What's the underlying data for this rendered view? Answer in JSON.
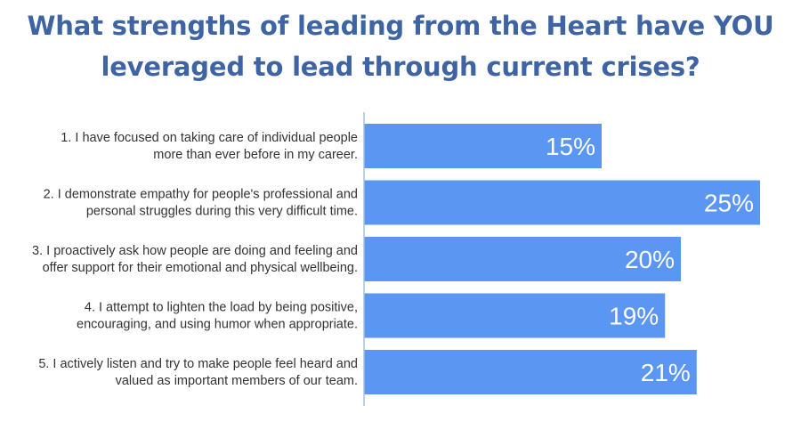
{
  "chart_data": {
    "type": "bar",
    "orientation": "horizontal",
    "title_lines": [
      "What strengths of leading from the Heart have YOU",
      "leveraged to lead through current crises?"
    ],
    "categories": [
      [
        "1. I have focused on taking care of individual people",
        "more than ever before in my career."
      ],
      [
        "2. I demonstrate empathy for people's professional and",
        "personal struggles during this very difficult time."
      ],
      [
        "3. I proactively ask how people are doing and feeling and",
        "offer support for their emotional and physical wellbeing."
      ],
      [
        "4. I attempt to lighten the load by being positive,",
        "encouraging, and using humor when appropriate."
      ],
      [
        "5. I actively listen and try to make people feel heard and",
        "valued as important members of our team."
      ]
    ],
    "values": [
      15,
      25,
      20,
      19,
      21
    ],
    "value_labels": [
      "15%",
      "25%",
      "20%",
      "19%",
      "21%"
    ],
    "xlim": [
      0,
      25
    ],
    "grid": false,
    "legend": "none",
    "bar_color": "#5b97f2",
    "axis_color": "#a8bfe0",
    "title_color": "#3f64a3"
  }
}
